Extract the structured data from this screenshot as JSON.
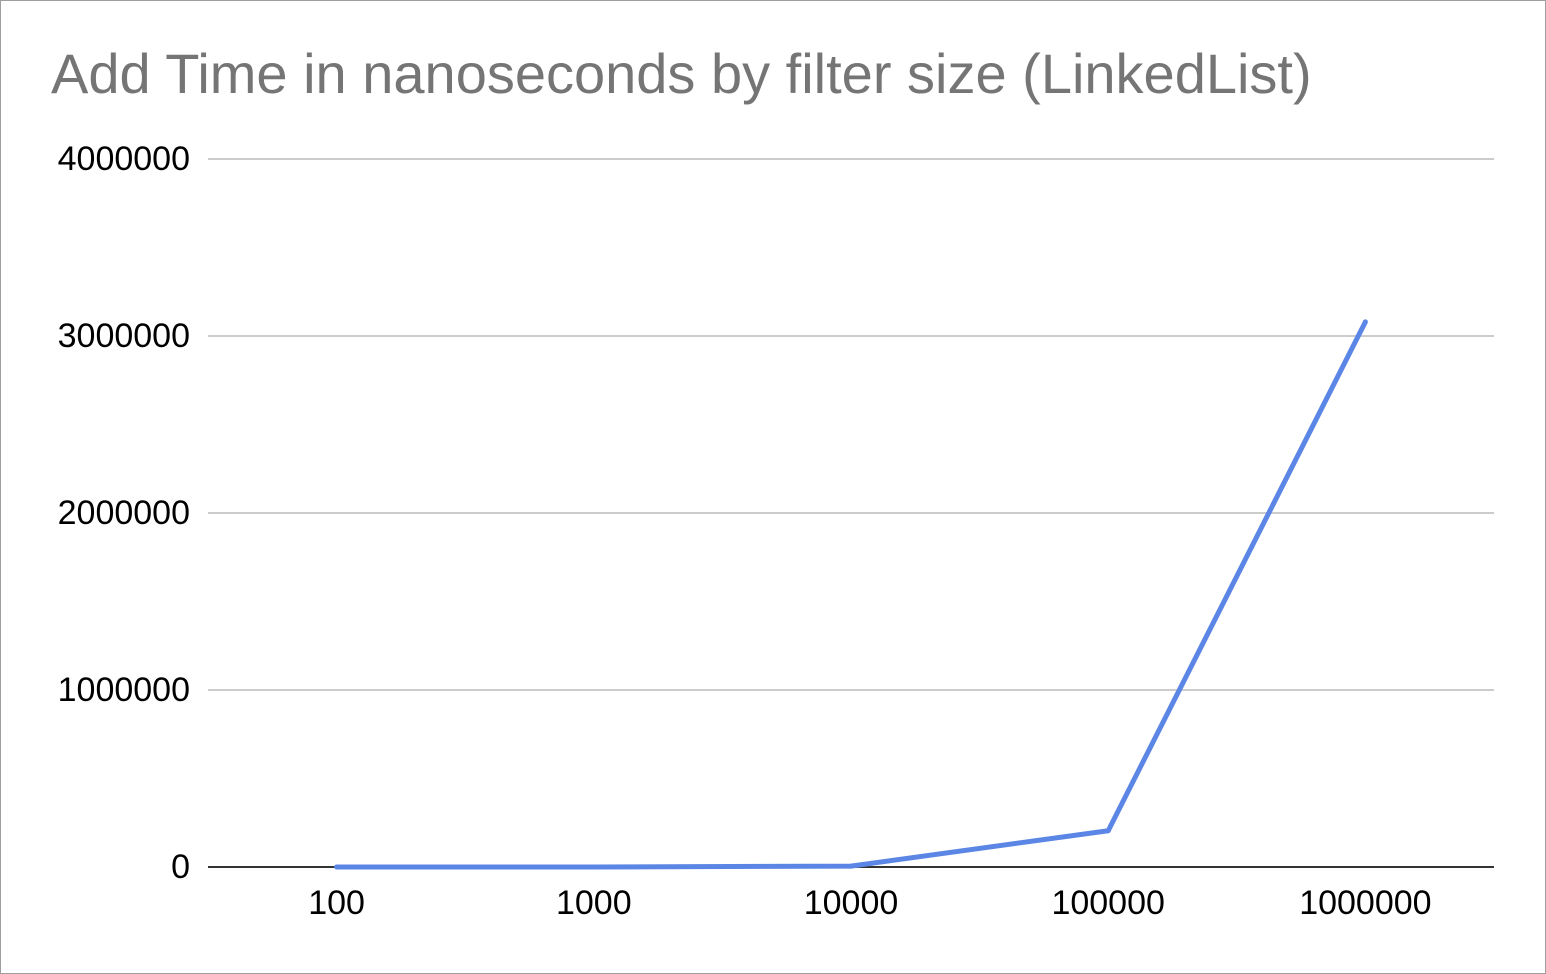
{
  "chart_data": {
    "type": "line",
    "title": "Add Time in nanoseconds by filter size (LinkedList)",
    "xlabel": "",
    "ylabel": "",
    "categories": [
      "100",
      "1000",
      "10000",
      "100000",
      "1000000"
    ],
    "series": [
      {
        "values": [
          0,
          0,
          5000,
          205000,
          3080000
        ]
      }
    ],
    "ylim": [
      0,
      4000000
    ],
    "yticks": [
      "0",
      "1000000",
      "2000000",
      "3000000",
      "4000000"
    ],
    "grid": true,
    "legend": "none",
    "colors": {
      "series": "#5b86e5",
      "grid": "#cccccc",
      "baseline": "#333333",
      "title": "#757575",
      "frame": "#9e9e9e"
    }
  }
}
